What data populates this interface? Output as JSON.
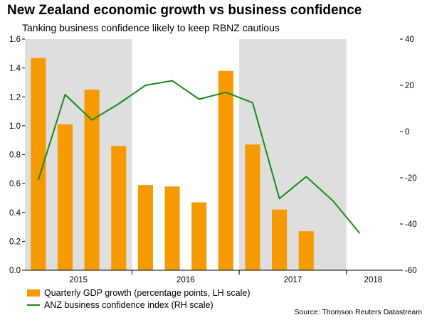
{
  "title": "New Zealand economic growth vs business confidence",
  "subtitle": "Tanking business confidence likely to keep RBNZ cautious",
  "source": "Source: Thomson Reuters Datastream",
  "colors": {
    "bar": "#f59a00",
    "line": "#1a8a1a",
    "shade": "#dedede",
    "axis": "#000000"
  },
  "chart_data": {
    "type": "bar+line",
    "categories": [
      "2015 Q1",
      "2015 Q2",
      "2015 Q3",
      "2015 Q4",
      "2016 Q1",
      "2016 Q2",
      "2016 Q3",
      "2016 Q4",
      "2017 Q1",
      "2017 Q2",
      "2017 Q3",
      "2017 Q4",
      "2018 Q1",
      "2018 Q2"
    ],
    "x_year_labels": [
      "2015",
      "2016",
      "2017",
      "2018"
    ],
    "shaded_years": [
      "2015",
      "2017"
    ],
    "series": [
      {
        "name": "Quarterly GDP growth (percentage points, LH scale)",
        "type": "bar",
        "axis": "left",
        "values": [
          1.47,
          1.01,
          1.25,
          0.86,
          0.59,
          0.58,
          0.47,
          1.38,
          0.87,
          0.42,
          0.27,
          null,
          null,
          null
        ]
      },
      {
        "name": "ANZ business confidence index (RH scale)",
        "type": "line",
        "axis": "right",
        "values": [
          -21,
          16,
          5,
          12,
          20,
          22,
          14,
          17,
          12.5,
          -29,
          -19.5,
          -30,
          -44,
          null
        ]
      }
    ],
    "left_axis": {
      "min": 0,
      "max": 1.6,
      "ticks": [
        "0.0",
        "0.2",
        "0.4",
        "0.6",
        "0.8",
        "1.0",
        "1.2",
        "1.4",
        "1.6"
      ]
    },
    "right_axis": {
      "min": -60,
      "max": 40,
      "ticks": [
        "-60",
        "-40",
        "-20",
        "0",
        "20",
        "40"
      ]
    },
    "legend_placement": "bottom-left"
  }
}
